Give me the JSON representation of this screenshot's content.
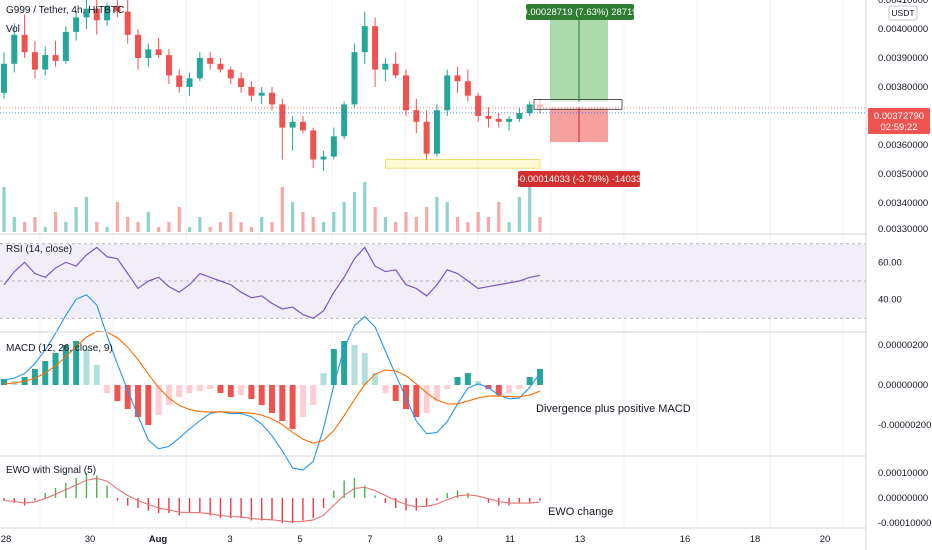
{
  "header": {
    "symbol": "G999 / Tether, 4h, HITBTC",
    "volume_label": "Vol",
    "currency_button": "USDT"
  },
  "price_pane": {
    "y_ticks": [
      "0.00410000",
      "0.00400000",
      "0.00390000",
      "0.00380000",
      "0.00360000",
      "0.00350000",
      "0.00340000",
      "0.00330000"
    ],
    "last_price": "0.00372790",
    "countdown": "02:59:22",
    "profit_label": "0.00028719 (7.63%) 28719",
    "loss_label": "-0.00014033 (-3.79%) -14033"
  },
  "rsi_pane": {
    "title": "RSI (14, close)",
    "y_ticks": [
      "60.00",
      "40.00"
    ]
  },
  "macd_pane": {
    "title": "MACD (12, 26, close, 9)",
    "y_ticks": [
      "0.00000200",
      "0.00000000",
      "-0.00000200"
    ],
    "annotation": "Divergence plus positive MACD"
  },
  "ewo_pane": {
    "title": "EWO with Signal (5)",
    "y_ticks": [
      "0.00010000",
      "0.00000000",
      "-0.00010000"
    ],
    "annotation": "EWO change"
  },
  "x_axis": {
    "ticks": [
      "28",
      "30",
      "Aug",
      "3",
      "5",
      "7",
      "9",
      "11",
      "13",
      "16",
      "18",
      "20"
    ]
  },
  "colors": {
    "up": "#26a69a",
    "down": "#ef5350",
    "rsi": "#7e57c2",
    "macd": "#2196f3",
    "signal": "#ff6d00",
    "ewo_up": "#4caf50",
    "ewo_down": "#f23645",
    "profit": "#2e7d32",
    "loss": "#d32f2f"
  },
  "chart_data": [
    {
      "type": "candlestick",
      "ylim": [
        0.0033,
        0.0041
      ],
      "candles": [
        [
          0.00378,
          0.00392,
          0.00376,
          0.00388
        ],
        [
          0.00388,
          0.00402,
          0.00385,
          0.00398
        ],
        [
          0.00398,
          0.00405,
          0.0039,
          0.00392
        ],
        [
          0.00392,
          0.00396,
          0.00383,
          0.00386
        ],
        [
          0.00386,
          0.00394,
          0.00384,
          0.00391
        ],
        [
          0.00391,
          0.00396,
          0.00387,
          0.00389
        ],
        [
          0.00389,
          0.00401,
          0.00388,
          0.00399
        ],
        [
          0.00399,
          0.00406,
          0.00396,
          0.00404
        ],
        [
          0.00404,
          0.00412,
          0.004,
          0.00407
        ],
        [
          0.00407,
          0.0041,
          0.00398,
          0.00403
        ],
        [
          0.00403,
          0.00409,
          0.00401,
          0.00408
        ],
        [
          0.00408,
          0.00412,
          0.00404,
          0.00406
        ],
        [
          0.00406,
          0.0041,
          0.00395,
          0.00398
        ],
        [
          0.00398,
          0.004,
          0.00386,
          0.0039
        ],
        [
          0.0039,
          0.00395,
          0.00387,
          0.00393
        ],
        [
          0.00393,
          0.00397,
          0.0039,
          0.00391
        ],
        [
          0.00391,
          0.00393,
          0.00381,
          0.00384
        ],
        [
          0.00384,
          0.00386,
          0.00378,
          0.0038
        ],
        [
          0.0038,
          0.00385,
          0.00377,
          0.00383
        ],
        [
          0.00383,
          0.00392,
          0.00382,
          0.0039
        ],
        [
          0.0039,
          0.00392,
          0.00386,
          0.00388
        ],
        [
          0.00388,
          0.0039,
          0.00385,
          0.00386
        ],
        [
          0.00386,
          0.00387,
          0.00381,
          0.00383
        ],
        [
          0.00383,
          0.00385,
          0.00378,
          0.0038
        ],
        [
          0.0038,
          0.00382,
          0.00375,
          0.00377
        ],
        [
          0.00377,
          0.0038,
          0.00374,
          0.00378
        ],
        [
          0.00378,
          0.0038,
          0.00372,
          0.00374
        ],
        [
          0.00374,
          0.00376,
          0.00355,
          0.00366
        ],
        [
          0.00366,
          0.0037,
          0.00358,
          0.00368
        ],
        [
          0.00368,
          0.0037,
          0.00364,
          0.00365
        ],
        [
          0.00365,
          0.00366,
          0.00352,
          0.00355
        ],
        [
          0.00355,
          0.00358,
          0.00351,
          0.00356
        ],
        [
          0.00356,
          0.00366,
          0.00355,
          0.00363
        ],
        [
          0.00363,
          0.00375,
          0.00362,
          0.00374
        ],
        [
          0.00374,
          0.00395,
          0.00373,
          0.00392
        ],
        [
          0.00392,
          0.00406,
          0.00388,
          0.00401
        ],
        [
          0.00401,
          0.00404,
          0.0038,
          0.00386
        ],
        [
          0.00386,
          0.0039,
          0.00382,
          0.00388
        ],
        [
          0.00388,
          0.00392,
          0.00383,
          0.00384
        ],
        [
          0.00384,
          0.00386,
          0.0037,
          0.00372
        ],
        [
          0.00372,
          0.00376,
          0.00364,
          0.00368
        ],
        [
          0.00368,
          0.00372,
          0.00355,
          0.00357
        ],
        [
          0.00357,
          0.00374,
          0.00356,
          0.00372
        ],
        [
          0.00372,
          0.00386,
          0.0037,
          0.00384
        ],
        [
          0.00384,
          0.00387,
          0.00378,
          0.00382
        ],
        [
          0.00382,
          0.00386,
          0.00375,
          0.00377
        ],
        [
          0.00377,
          0.00378,
          0.00368,
          0.0037
        ],
        [
          0.0037,
          0.00373,
          0.00366,
          0.00369
        ],
        [
          0.00369,
          0.00371,
          0.00366,
          0.00368
        ],
        [
          0.00368,
          0.0037,
          0.00365,
          0.00369
        ],
        [
          0.00369,
          0.00373,
          0.00368,
          0.00371
        ],
        [
          0.00371,
          0.00375,
          0.0037,
          0.00374
        ],
        [
          0.00374,
          0.00376,
          0.00371,
          0.00373
        ]
      ],
      "entry": 0.00375,
      "take_profit": 0.00404,
      "stop_loss": 0.00361,
      "support_zone": [
        0.00352,
        0.00355
      ]
    },
    {
      "type": "bar",
      "name": "volume",
      "values": [
        0.9,
        0.3,
        0.2,
        0.3,
        0.1,
        0.4,
        0.2,
        0.5,
        0.7,
        0.2,
        0.1,
        0.6,
        0.3,
        0.2,
        0.4,
        0.1,
        0.2,
        0.5,
        0.1,
        0.3,
        0.1,
        0.2,
        0.4,
        0.2,
        0.1,
        0.3,
        0.2,
        0.9,
        0.6,
        0.4,
        0.3,
        0.2,
        0.4,
        0.6,
        0.8,
        1.0,
        0.5,
        0.3,
        0.2,
        0.4,
        0.3,
        0.5,
        0.7,
        0.6,
        0.3,
        0.2,
        0.4,
        0.3,
        0.6,
        0.2,
        0.7,
        0.9,
        0.3
      ]
    },
    {
      "type": "line",
      "name": "RSI",
      "ylim": [
        28,
        72
      ],
      "bands": [
        30,
        50,
        70
      ],
      "values": [
        48,
        55,
        60,
        54,
        52,
        57,
        60,
        58,
        64,
        68,
        63,
        62,
        54,
        46,
        50,
        52,
        47,
        44,
        48,
        54,
        52,
        50,
        48,
        44,
        41,
        42,
        38,
        35,
        36,
        32,
        30,
        34,
        44,
        52,
        62,
        68,
        58,
        55,
        56,
        48,
        46,
        42,
        48,
        56,
        54,
        50,
        46,
        47,
        48,
        49,
        50,
        52,
        53
      ]
    },
    {
      "type": "bar",
      "name": "MACD histogram",
      "ylim": [
        -3.5e-06,
        2.5e-06
      ],
      "values": [
        0.3,
        0.2,
        0.4,
        0.8,
        1.2,
        1.6,
        2.0,
        2.2,
        1.8,
        1.0,
        -0.4,
        -0.8,
        -1.2,
        -1.6,
        -2.0,
        -1.5,
        -1.0,
        -0.6,
        -0.4,
        -0.3,
        -0.2,
        -0.4,
        -0.6,
        -0.5,
        -0.7,
        -1.0,
        -1.4,
        -1.8,
        -2.2,
        -1.6,
        -1.0,
        0.6,
        1.8,
        2.2,
        2.0,
        1.6,
        0.6,
        -0.4,
        -0.8,
        -1.2,
        -1.6,
        -1.4,
        -0.8,
        -0.2,
        0.4,
        0.6,
        0.2,
        -0.2,
        -0.5,
        -0.4,
        -0.2,
        0.4,
        0.8
      ]
    },
    {
      "type": "bar",
      "name": "EWO",
      "ylim": [
        -0.00012,
        0.00016
      ],
      "values": [
        -0.1,
        -0.2,
        -0.3,
        -0.1,
        0.2,
        0.4,
        0.6,
        0.8,
        1.0,
        0.9,
        0.5,
        -0.1,
        -0.3,
        -0.4,
        -0.5,
        -0.6,
        -0.6,
        -0.7,
        -0.6,
        -0.6,
        -0.7,
        -0.8,
        -0.8,
        -0.8,
        -0.9,
        -0.9,
        -0.9,
        -1.0,
        -1.0,
        -0.9,
        -0.8,
        -0.4,
        0.3,
        0.7,
        0.8,
        0.5,
        0.1,
        -0.2,
        -0.4,
        -0.5,
        -0.5,
        -0.3,
        -0.1,
        0.2,
        0.3,
        0.2,
        0.0,
        -0.2,
        -0.3,
        -0.3,
        -0.2,
        -0.2,
        -0.1
      ]
    }
  ]
}
